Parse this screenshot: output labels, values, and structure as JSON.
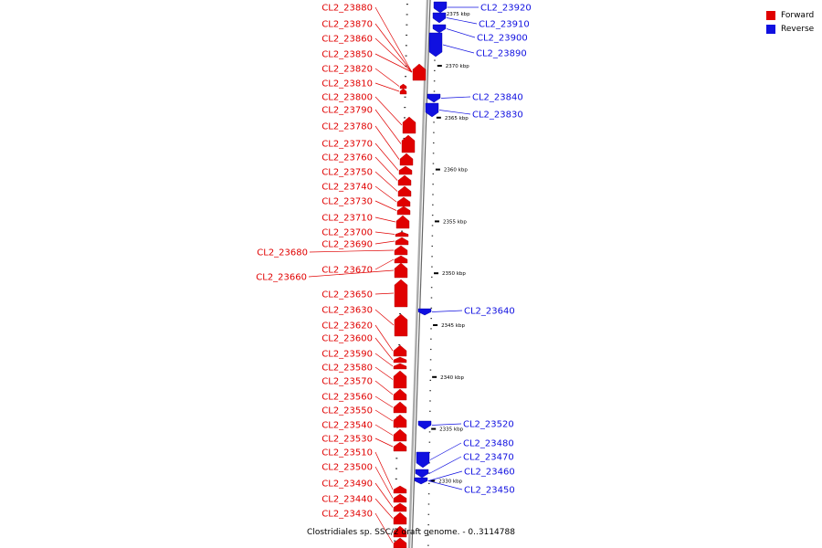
{
  "colors": {
    "forward": "#e00000",
    "reverse": "#1010e0",
    "backbone": "#999999"
  },
  "legend": {
    "forward": "Forward",
    "reverse": "Reverse"
  },
  "caption": "Clostridiales sp. SSC/2 draft genome. - 0..3114788",
  "kbp_labels": [
    {
      "text": "2375 kbp",
      "kbp": 2375
    },
    {
      "text": "2370 kbp",
      "kbp": 2370
    },
    {
      "text": "2365 kbp",
      "kbp": 2365
    },
    {
      "text": "2360 kbp",
      "kbp": 2360
    },
    {
      "text": "2355 kbp",
      "kbp": 2355
    },
    {
      "text": "2350 kbp",
      "kbp": 2350
    },
    {
      "text": "2345 kbp",
      "kbp": 2345
    },
    {
      "text": "2340 kbp",
      "kbp": 2340
    },
    {
      "text": "2335 kbp",
      "kbp": 2335
    },
    {
      "text": "2330 kbp",
      "kbp": 2330
    }
  ],
  "forward_genes": [
    "CL2_23880",
    "CL2_23870",
    "CL2_23860",
    "CL2_23850",
    "CL2_23820",
    "CL2_23810",
    "CL2_23800",
    "CL2_23790",
    "CL2_23780",
    "CL2_23770",
    "CL2_23760",
    "CL2_23750",
    "CL2_23740",
    "CL2_23730",
    "CL2_23710",
    "CL2_23700",
    "CL2_23690",
    "CL2_23680",
    "CL2_23670",
    "CL2_23660",
    "CL2_23650",
    "CL2_23630",
    "CL2_23620",
    "CL2_23600",
    "CL2_23590",
    "CL2_23580",
    "CL2_23570",
    "CL2_23560",
    "CL2_23550",
    "CL2_23540",
    "CL2_23530",
    "CL2_23510",
    "CL2_23500",
    "CL2_23490",
    "CL2_23440",
    "CL2_23430"
  ],
  "reverse_genes": [
    "CL2_23920",
    "CL2_23910",
    "CL2_23900",
    "CL2_23890",
    "CL2_23840",
    "CL2_23830",
    "CL2_23640",
    "CL2_23520",
    "CL2_23480",
    "CL2_23470",
    "CL2_23460",
    "CL2_23450"
  ]
}
